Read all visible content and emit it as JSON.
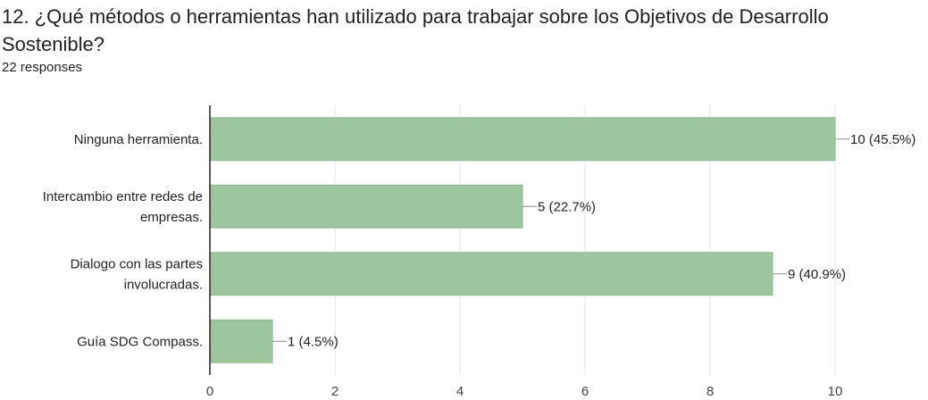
{
  "question": {
    "title": "12. ¿Qué métodos o herramientas han utilizado para trabajar sobre los Objetivos de Desarrollo Sostenible?",
    "responses": "22 responses"
  },
  "chart_data": {
    "type": "bar",
    "orientation": "horizontal",
    "categories": [
      [
        "Ninguna herramienta."
      ],
      [
        "Intercambio entre redes de",
        "empresas."
      ],
      [
        "Dialogo con las partes",
        "involucradas."
      ],
      [
        "Guía SDG Compass."
      ]
    ],
    "values": [
      10,
      5,
      9,
      1
    ],
    "value_labels": [
      "10 (45.5%)",
      "5 (22.7%)",
      "9 (40.9%)",
      "1 (4.5%)"
    ],
    "xlim": [
      0,
      10
    ],
    "xticks": [
      0,
      2,
      4,
      6,
      8,
      10
    ],
    "grid": true,
    "colors": {
      "bar": "#9dc59e",
      "bar_border": "#8fb890",
      "axis": "#222222",
      "grid": "#e6e6e6",
      "leader": "#888888"
    }
  }
}
